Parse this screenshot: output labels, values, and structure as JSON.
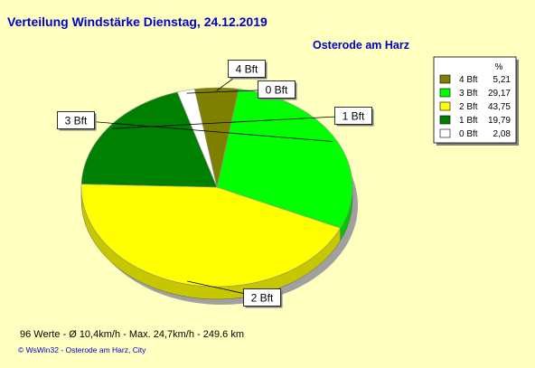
{
  "header": {
    "title": "Verteilung Windstärke  Dienstag, 24.12.2019",
    "location": "Osterode am Harz"
  },
  "footer": {
    "stats": "96 Werte   -   Ø 10,4km/h  -  Max. 24,7km/h   -   249.6 km",
    "copyright": "© WsWin32  -  Osterode am Harz, City"
  },
  "chart_data": {
    "type": "pie",
    "legend_header": "%",
    "legend_position": "top-right",
    "slices": [
      {
        "label": "4 Bft",
        "value": 5.21,
        "value_text": "5,21",
        "color": "#808000"
      },
      {
        "label": "3 Bft",
        "value": 29.17,
        "value_text": "29,17",
        "color": "#00ff00"
      },
      {
        "label": "2 Bft",
        "value": 43.75,
        "value_text": "43,75",
        "color": "#ffff00"
      },
      {
        "label": "1 Bft",
        "value": 19.79,
        "value_text": "19,79",
        "color": "#008000"
      },
      {
        "label": "0 Bft",
        "value": 2.08,
        "value_text": "2,08",
        "color": "#ffffff"
      }
    ]
  }
}
